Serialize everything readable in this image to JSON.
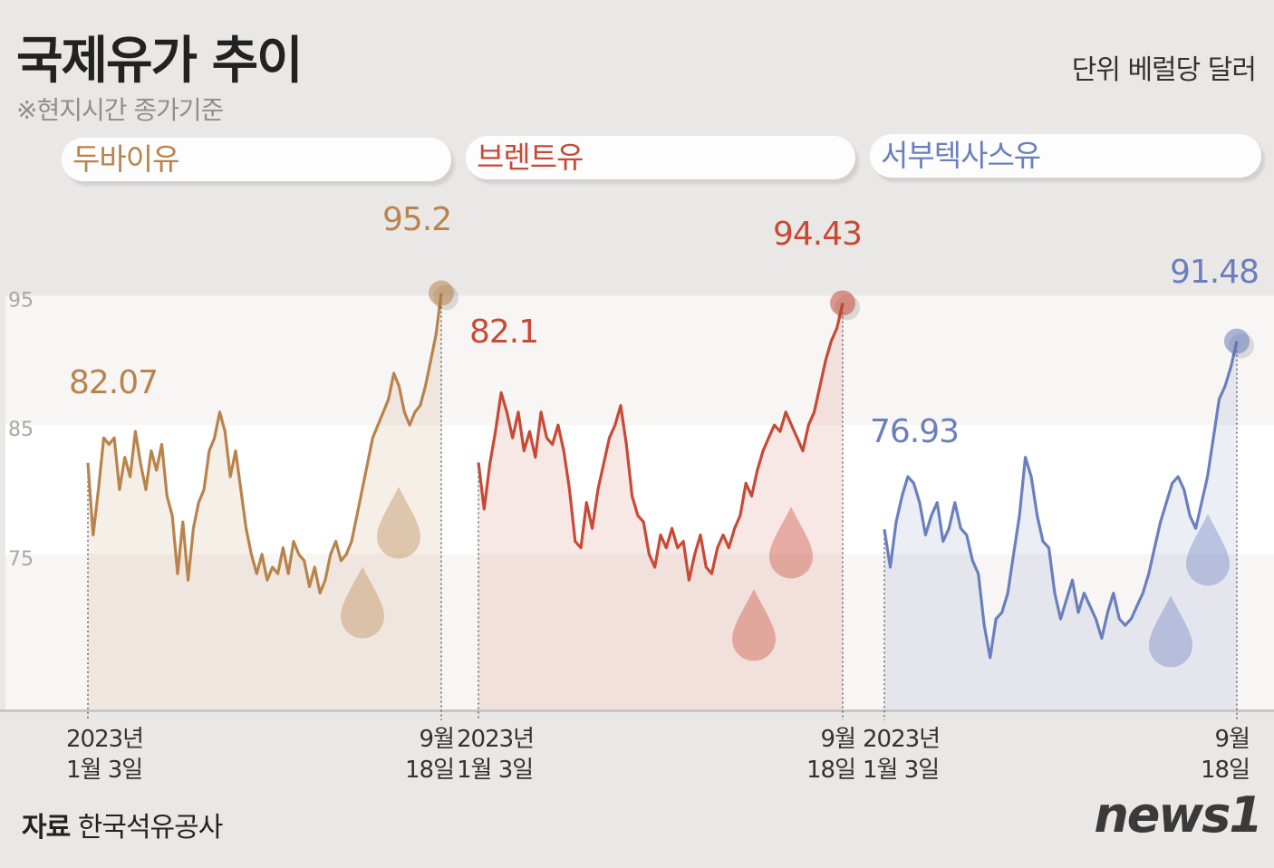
{
  "header": {
    "title": "국제유가 추이",
    "note": "※현지시간 종가기준",
    "unit": "단위 베럴당 달러"
  },
  "footer": {
    "source_label": "자료",
    "source_name": "한국석유공사",
    "logo": "news1"
  },
  "colors": {
    "background": "#e9e8e7",
    "dubai": "#b9834b",
    "brent": "#c84a36",
    "wti": "#6a7fbd"
  },
  "chart_data": [
    {
      "type": "area",
      "name": "두바이유",
      "color": "#b9834b",
      "x_start": "2023-01-03",
      "x_end": "2023-09-18",
      "x_start_label": [
        "2023년",
        "1월 3일"
      ],
      "x_end_label": [
        "9월",
        "18일"
      ],
      "ylim": [
        63,
        100
      ],
      "yticks": [
        75,
        85,
        95
      ],
      "start_value": 82.07,
      "end_value": 95.2,
      "start_label": "82.07",
      "end_label": "95.2",
      "values": [
        82.07,
        76.5,
        80.0,
        84.0,
        83.5,
        84.0,
        80.0,
        82.5,
        81.0,
        84.5,
        82.0,
        80.0,
        83.0,
        81.5,
        83.5,
        79.5,
        78.0,
        73.5,
        77.5,
        73.0,
        77.0,
        79.0,
        80.0,
        83.0,
        84.0,
        86.0,
        84.5,
        81.0,
        83.0,
        80.0,
        77.0,
        75.0,
        73.5,
        75.0,
        73.0,
        74.0,
        73.5,
        75.5,
        73.5,
        76.0,
        75.0,
        74.5,
        72.5,
        74.0,
        72.0,
        73.0,
        75.0,
        76.0,
        74.5,
        75.0,
        76.0,
        78.0,
        80.0,
        82.0,
        84.0,
        85.0,
        86.0,
        87.0,
        89.0,
        88.0,
        86.0,
        85.0,
        86.0,
        86.5,
        88.0,
        90.0,
        92.0,
        95.2
      ]
    },
    {
      "type": "area",
      "name": "브렌트유",
      "color": "#c84a36",
      "x_start": "2023-01-03",
      "x_end": "2023-09-18",
      "x_start_label": [
        "2023년",
        "1월 3일"
      ],
      "x_end_label": [
        "9월",
        "18일"
      ],
      "ylim": [
        63,
        100
      ],
      "yticks": [
        75,
        85,
        95
      ],
      "start_value": 82.1,
      "end_value": 94.43,
      "start_label": "82.1",
      "end_label": "94.43",
      "values": [
        82.1,
        78.5,
        82.0,
        84.5,
        87.5,
        86.0,
        84.0,
        86.0,
        83.0,
        84.5,
        82.5,
        86.0,
        84.0,
        83.5,
        85.0,
        83.0,
        80.0,
        76.0,
        75.5,
        79.0,
        77.0,
        80.0,
        82.0,
        84.0,
        85.0,
        86.5,
        83.5,
        79.5,
        78.0,
        77.5,
        75.0,
        74.0,
        76.5,
        75.5,
        77.0,
        75.5,
        76.0,
        73.0,
        75.0,
        76.5,
        74.0,
        73.5,
        75.5,
        76.5,
        75.5,
        77.0,
        78.0,
        80.5,
        79.5,
        81.5,
        83.0,
        84.0,
        85.0,
        84.5,
        86.0,
        85.0,
        84.0,
        83.0,
        85.0,
        86.0,
        88.0,
        90.0,
        91.5,
        92.5,
        94.43
      ]
    },
    {
      "type": "area",
      "name": "서부텍사스유",
      "color": "#6a7fbd",
      "x_start": "2023-01-03",
      "x_end": "2023-09-18",
      "x_start_label": [
        "2023년",
        "1월 3일"
      ],
      "x_end_label": [
        "9월",
        "18일"
      ],
      "ylim": [
        63,
        100
      ],
      "yticks": [
        75,
        85,
        95
      ],
      "start_value": 76.93,
      "end_value": 91.48,
      "start_label": "76.93",
      "end_label": "91.48",
      "values": [
        76.93,
        74.0,
        77.5,
        79.5,
        81.0,
        80.5,
        79.0,
        76.5,
        78.0,
        79.0,
        76.0,
        77.0,
        79.0,
        77.0,
        76.5,
        74.5,
        73.5,
        69.5,
        67.0,
        70.0,
        70.5,
        72.0,
        75.0,
        78.0,
        82.5,
        81.0,
        78.0,
        76.0,
        75.5,
        72.0,
        70.0,
        71.5,
        73.0,
        70.5,
        72.0,
        71.0,
        70.0,
        68.5,
        70.5,
        72.0,
        70.0,
        69.5,
        70.0,
        71.0,
        72.0,
        73.5,
        75.5,
        77.5,
        79.0,
        80.5,
        81.0,
        80.0,
        78.0,
        77.0,
        79.0,
        81.0,
        84.0,
        87.0,
        88.0,
        89.5,
        91.48
      ]
    }
  ],
  "charts": [
    {
      "tab_label": "두바이유",
      "y_axis_labels": [
        "95",
        "85",
        "75"
      ]
    },
    {
      "tab_label": "브렌트유"
    },
    {
      "tab_label": "서부텍사스유"
    }
  ]
}
